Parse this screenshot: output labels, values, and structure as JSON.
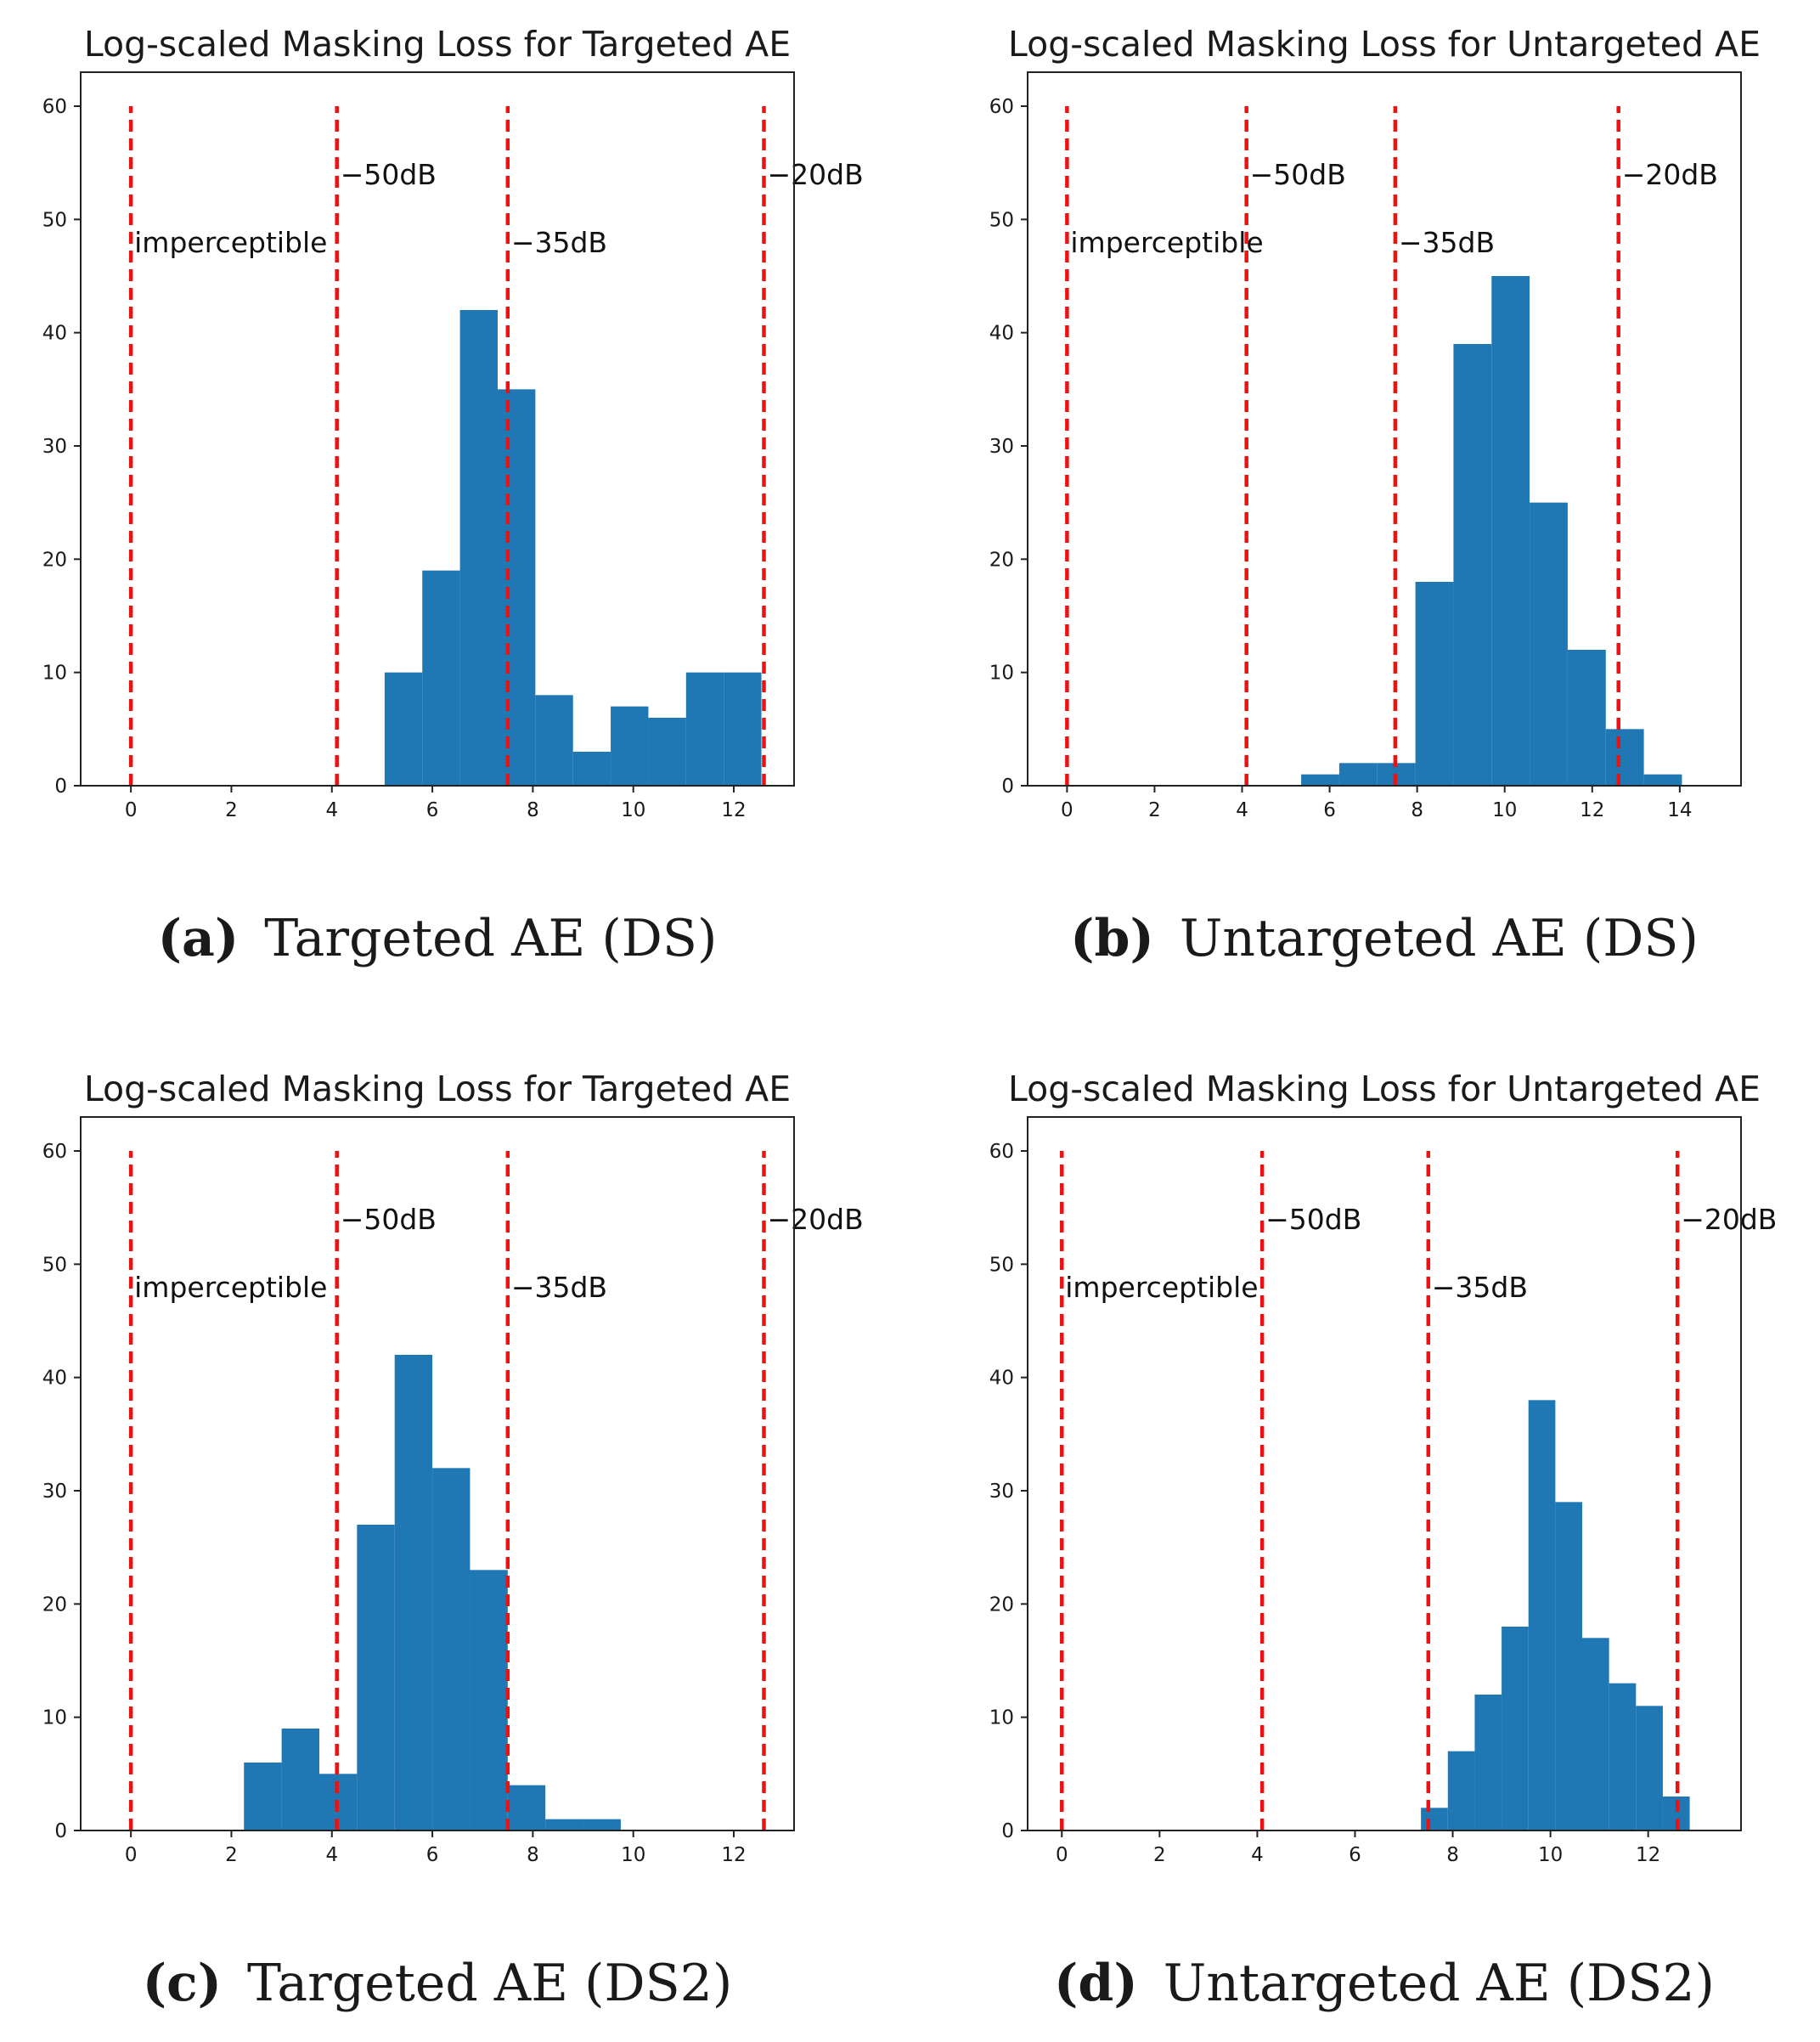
{
  "figure": {
    "colors": {
      "bar": "#1f77b4",
      "threshold_line": "#ee1111",
      "axes": "#222222",
      "text": "#1a1a1a"
    }
  },
  "chart_data": [
    {
      "id": "a",
      "type": "bar",
      "title": "Log-scaled Masking Loss for Targeted AE",
      "caption_label": "(a)",
      "caption_text": "Targeted AE (DS)",
      "xlabel": "",
      "ylabel": "",
      "xlim": [
        -1.0,
        13.2
      ],
      "ylim": [
        0,
        60
      ],
      "xticks": [
        0,
        2,
        4,
        6,
        8,
        10,
        12
      ],
      "yticks": [
        0,
        10,
        20,
        30,
        40,
        50,
        60
      ],
      "bins": [
        {
          "x0": 5.05,
          "x1": 5.8,
          "count": 10
        },
        {
          "x0": 5.8,
          "x1": 6.55,
          "count": 19
        },
        {
          "x0": 6.55,
          "x1": 7.3,
          "count": 42
        },
        {
          "x0": 7.3,
          "x1": 8.05,
          "count": 35
        },
        {
          "x0": 8.05,
          "x1": 8.8,
          "count": 8
        },
        {
          "x0": 8.8,
          "x1": 9.55,
          "count": 3
        },
        {
          "x0": 9.55,
          "x1": 10.3,
          "count": 7
        },
        {
          "x0": 10.3,
          "x1": 11.05,
          "count": 6
        },
        {
          "x0": 11.05,
          "x1": 11.8,
          "count": 10
        },
        {
          "x0": 11.8,
          "x1": 12.55,
          "count": 10
        }
      ],
      "thresholds": [
        {
          "x": 0.0,
          "label": "imperceptible",
          "label_y": 48
        },
        {
          "x": 4.1,
          "label": "−50dB",
          "label_y": 54
        },
        {
          "x": 7.5,
          "label": "−35dB",
          "label_y": 48
        },
        {
          "x": 12.6,
          "label": "−20dB",
          "label_y": 54
        }
      ]
    },
    {
      "id": "b",
      "type": "bar",
      "title": "Log-scaled Masking Loss for Untargeted AE",
      "caption_label": "(b)",
      "caption_text": "Untargeted AE (DS)",
      "xlabel": "",
      "ylabel": "",
      "xlim": [
        -0.9,
        15.4
      ],
      "ylim": [
        0,
        60
      ],
      "xticks": [
        0,
        2,
        4,
        6,
        8,
        10,
        12,
        14
      ],
      "yticks": [
        0,
        10,
        20,
        30,
        40,
        50,
        60
      ],
      "bins": [
        {
          "x0": 5.35,
          "x1": 6.22,
          "count": 1
        },
        {
          "x0": 6.22,
          "x1": 7.09,
          "count": 2
        },
        {
          "x0": 7.09,
          "x1": 7.96,
          "count": 2
        },
        {
          "x0": 7.96,
          "x1": 8.83,
          "count": 18
        },
        {
          "x0": 8.83,
          "x1": 9.7,
          "count": 39
        },
        {
          "x0": 9.7,
          "x1": 10.57,
          "count": 45
        },
        {
          "x0": 10.57,
          "x1": 11.44,
          "count": 25
        },
        {
          "x0": 11.44,
          "x1": 12.31,
          "count": 12
        },
        {
          "x0": 12.31,
          "x1": 13.18,
          "count": 5
        },
        {
          "x0": 13.18,
          "x1": 14.05,
          "count": 1
        }
      ],
      "thresholds": [
        {
          "x": 0.0,
          "label": "imperceptible",
          "label_y": 48
        },
        {
          "x": 4.1,
          "label": "−50dB",
          "label_y": 54
        },
        {
          "x": 7.5,
          "label": "−35dB",
          "label_y": 48
        },
        {
          "x": 12.6,
          "label": "−20dB",
          "label_y": 54
        }
      ]
    },
    {
      "id": "c",
      "type": "bar",
      "title": "Log-scaled Masking Loss for Targeted AE",
      "caption_label": "(c)",
      "caption_text": "Targeted AE (DS2)",
      "xlabel": "",
      "ylabel": "",
      "xlim": [
        -1.0,
        13.2
      ],
      "ylim": [
        0,
        60
      ],
      "xticks": [
        0,
        2,
        4,
        6,
        8,
        10,
        12
      ],
      "yticks": [
        0,
        10,
        20,
        30,
        40,
        50,
        60
      ],
      "bins": [
        {
          "x0": 2.25,
          "x1": 3.0,
          "count": 6
        },
        {
          "x0": 3.0,
          "x1": 3.75,
          "count": 9
        },
        {
          "x0": 3.75,
          "x1": 4.5,
          "count": 5
        },
        {
          "x0": 4.5,
          "x1": 5.25,
          "count": 27
        },
        {
          "x0": 5.25,
          "x1": 6.0,
          "count": 42
        },
        {
          "x0": 6.0,
          "x1": 6.75,
          "count": 32
        },
        {
          "x0": 6.75,
          "x1": 7.5,
          "count": 23
        },
        {
          "x0": 7.5,
          "x1": 8.25,
          "count": 4
        },
        {
          "x0": 8.25,
          "x1": 9.0,
          "count": 1
        },
        {
          "x0": 9.0,
          "x1": 9.75,
          "count": 1
        }
      ],
      "thresholds": [
        {
          "x": 0.0,
          "label": "imperceptible",
          "label_y": 48
        },
        {
          "x": 4.1,
          "label": "−50dB",
          "label_y": 54
        },
        {
          "x": 7.5,
          "label": "−35dB",
          "label_y": 48
        },
        {
          "x": 12.6,
          "label": "−20dB",
          "label_y": 54
        }
      ]
    },
    {
      "id": "d",
      "type": "bar",
      "title": "Log-scaled Masking Loss for Untargeted AE",
      "caption_label": "(d)",
      "caption_text": "Untargeted AE (DS2)",
      "xlabel": "",
      "ylabel": "",
      "xlim": [
        -0.7,
        13.9
      ],
      "ylim": [
        0,
        60
      ],
      "xticks": [
        0,
        2,
        4,
        6,
        8,
        10,
        12
      ],
      "yticks": [
        0,
        10,
        20,
        30,
        40,
        50,
        60
      ],
      "bins": [
        {
          "x0": 7.35,
          "x1": 7.9,
          "count": 2
        },
        {
          "x0": 7.9,
          "x1": 8.45,
          "count": 7
        },
        {
          "x0": 8.45,
          "x1": 9.0,
          "count": 12
        },
        {
          "x0": 9.0,
          "x1": 9.55,
          "count": 18
        },
        {
          "x0": 9.55,
          "x1": 10.1,
          "count": 38
        },
        {
          "x0": 10.1,
          "x1": 10.65,
          "count": 29
        },
        {
          "x0": 10.65,
          "x1": 11.2,
          "count": 17
        },
        {
          "x0": 11.2,
          "x1": 11.75,
          "count": 13
        },
        {
          "x0": 11.75,
          "x1": 12.3,
          "count": 11
        },
        {
          "x0": 12.3,
          "x1": 12.85,
          "count": 3
        }
      ],
      "thresholds": [
        {
          "x": 0.0,
          "label": "imperceptible",
          "label_y": 48
        },
        {
          "x": 4.1,
          "label": "−50dB",
          "label_y": 54
        },
        {
          "x": 7.5,
          "label": "−35dB",
          "label_y": 48
        },
        {
          "x": 12.6,
          "label": "−20dB",
          "label_y": 54
        }
      ]
    }
  ]
}
